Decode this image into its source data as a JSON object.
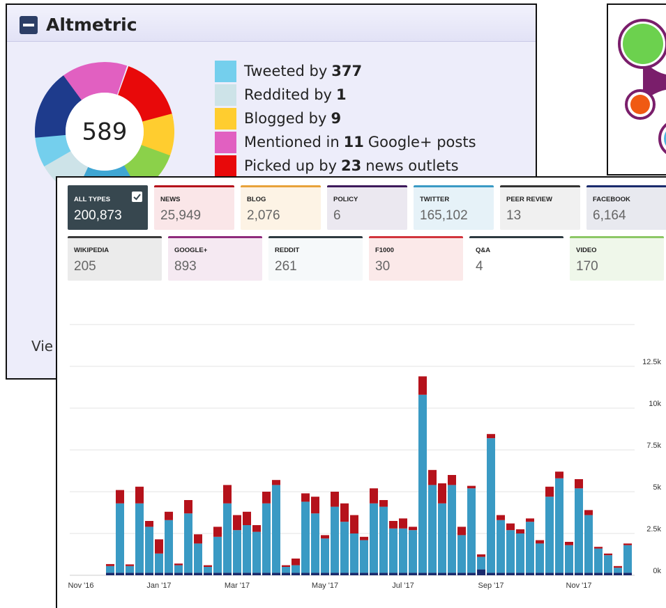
{
  "altmetric": {
    "title": "Altmetric",
    "score": 589,
    "items": [
      {
        "text": "Tweeted by",
        "count": 377,
        "color": "#74cfed"
      },
      {
        "text": "Reddited by",
        "count": 1,
        "color": "#cde3e8"
      },
      {
        "text": "Blogged by",
        "count": 9,
        "color": "#ffcd2f"
      },
      {
        "text": "Mentioned in",
        "count": 11,
        "suffix": "Google+ posts",
        "color": "#e160c1"
      },
      {
        "text": "Picked up by",
        "count": 23,
        "suffix": "news outlets",
        "color": "#e8090a"
      }
    ],
    "link": "Vie"
  },
  "tiles": [
    {
      "label": "ALL TYPES",
      "value": "200,873"
    },
    {
      "label": "NEWS",
      "value": "25,949"
    },
    {
      "label": "BLOG",
      "value": "2,076"
    },
    {
      "label": "POLICY",
      "value": "6"
    },
    {
      "label": "TWITTER",
      "value": "165,102"
    },
    {
      "label": "PEER REVIEW",
      "value": "13"
    },
    {
      "label": "FACEBOOK",
      "value": "6,164"
    },
    {
      "label": "WIKIPEDIA",
      "value": "205"
    },
    {
      "label": "GOOGLE+",
      "value": "893"
    },
    {
      "label": "REDDIT",
      "value": "261"
    },
    {
      "label": "F1000",
      "value": "30"
    },
    {
      "label": "Q&A",
      "value": "4"
    },
    {
      "label": "VIDEO",
      "value": "170"
    }
  ],
  "chart_data": {
    "type": "bar",
    "stacked": true,
    "categories": [
      "Nov '16",
      null,
      null,
      null,
      null,
      null,
      null,
      null,
      "Jan '17",
      null,
      null,
      null,
      null,
      null,
      null,
      null,
      "Mar '17",
      null,
      null,
      null,
      null,
      null,
      null,
      null,
      null,
      "May '17",
      null,
      null,
      null,
      null,
      null,
      null,
      null,
      "Jul '17",
      null,
      null,
      null,
      null,
      null,
      null,
      null,
      null,
      "Sep '17",
      null,
      null,
      null,
      null,
      null,
      null,
      null,
      null,
      "Nov '17",
      null,
      null,
      null,
      null,
      null
    ],
    "series": [
      {
        "color": "#1a2a6c",
        "values": [
          null,
          null,
          null,
          150,
          150,
          150,
          150,
          150,
          150,
          150,
          150,
          150,
          150,
          150,
          150,
          150,
          150,
          150,
          150,
          150,
          150,
          150,
          150,
          150,
          150,
          150,
          150,
          150,
          150,
          150,
          150,
          150,
          150,
          150,
          150,
          150,
          150,
          150,
          150,
          150,
          150,
          350,
          150,
          150,
          150,
          150,
          150,
          150,
          150,
          150,
          150,
          150,
          150,
          150,
          150,
          150,
          150
        ]
      },
      {
        "color": "#3a9ac4",
        "values": [
          null,
          null,
          null,
          400,
          4150,
          400,
          4150,
          2750,
          1150,
          3150,
          450,
          3550,
          1750,
          350,
          2150,
          4150,
          2550,
          2850,
          2450,
          4150,
          5250,
          350,
          450,
          4250,
          3550,
          2050,
          3950,
          3050,
          2350,
          1950,
          4150,
          3950,
          2650,
          2650,
          2550,
          10650,
          5250,
          4150,
          5250,
          2250,
          5050,
          750,
          8050,
          3150,
          2550,
          2350,
          3050,
          1750,
          4550,
          5650,
          1650,
          5050,
          3450,
          1450,
          1050,
          300,
          1650
        ]
      },
      {
        "color": "#b5121b",
        "values": [
          null,
          null,
          null,
          120,
          800,
          100,
          1000,
          350,
          850,
          500,
          100,
          800,
          550,
          100,
          600,
          1100,
          900,
          800,
          400,
          700,
          300,
          100,
          400,
          500,
          1000,
          200,
          900,
          1100,
          1100,
          200,
          900,
          400,
          450,
          600,
          200,
          1100,
          900,
          1200,
          600,
          500,
          150,
          150,
          250,
          300,
          400,
          250,
          200,
          200,
          600,
          400,
          200,
          550,
          300,
          100,
          100,
          100,
          100
        ]
      }
    ],
    "ylim": [
      0,
      15000
    ],
    "yticks": [
      {
        "value": 0,
        "label": "0k"
      },
      {
        "value": 2500,
        "label": "2.5k"
      },
      {
        "value": 5000,
        "label": "5k"
      },
      {
        "value": 7500,
        "label": "7.5k"
      },
      {
        "value": 10000,
        "label": "10k"
      },
      {
        "value": 12500,
        "label": "12.5k"
      }
    ],
    "grid": true
  }
}
